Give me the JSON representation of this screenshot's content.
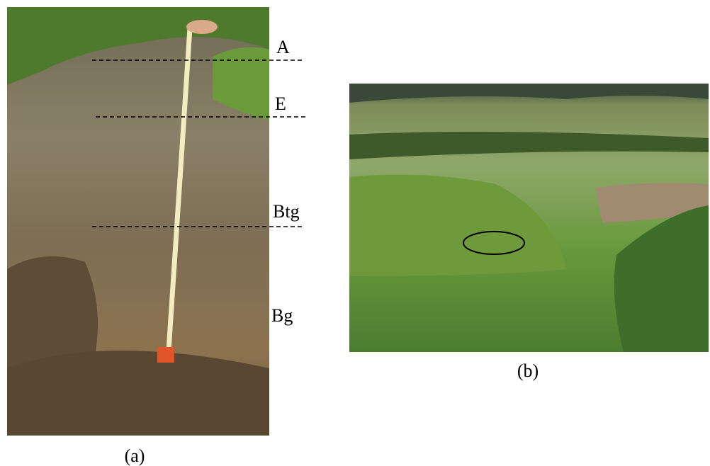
{
  "panels": [
    {
      "caption": "(a)",
      "horizons": [
        "A",
        "E",
        "Btg",
        "Bg"
      ]
    },
    {
      "caption": "(b)"
    }
  ]
}
